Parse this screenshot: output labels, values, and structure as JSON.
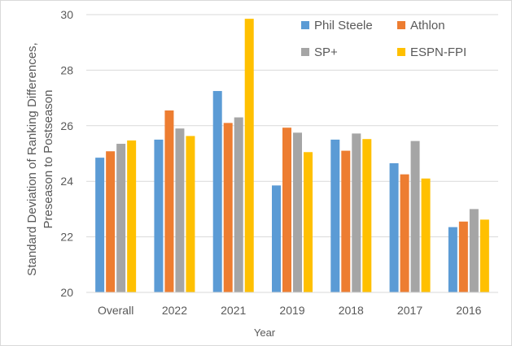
{
  "chart_data": {
    "type": "bar",
    "categories": [
      "Overall",
      "2022",
      "2021",
      "2019",
      "2018",
      "2017",
      "2016"
    ],
    "series": [
      {
        "name": "Phil Steele",
        "color": "#5B9BD5",
        "values": [
          24.85,
          25.5,
          27.25,
          23.85,
          25.5,
          24.65,
          22.35
        ]
      },
      {
        "name": "Athlon",
        "color": "#ED7D31",
        "values": [
          25.08,
          26.55,
          26.1,
          25.93,
          25.1,
          24.25,
          22.55
        ]
      },
      {
        "name": "SP+",
        "color": "#A5A5A5",
        "values": [
          25.35,
          25.9,
          26.3,
          25.75,
          25.72,
          25.45,
          23.0
        ]
      },
      {
        "name": "ESPN-FPI",
        "color": "#FFC000",
        "values": [
          25.47,
          25.63,
          29.85,
          25.05,
          25.52,
          24.1,
          22.62
        ]
      }
    ],
    "xlabel": "Year",
    "ylabel_lines": [
      "Standard Deviation of Ranking Differences,",
      "Preseason to Postseason"
    ],
    "ylim": [
      20,
      30
    ],
    "yticks": [
      20,
      22,
      24,
      26,
      28,
      30
    ],
    "grid": true,
    "legend_position": "top-right"
  }
}
